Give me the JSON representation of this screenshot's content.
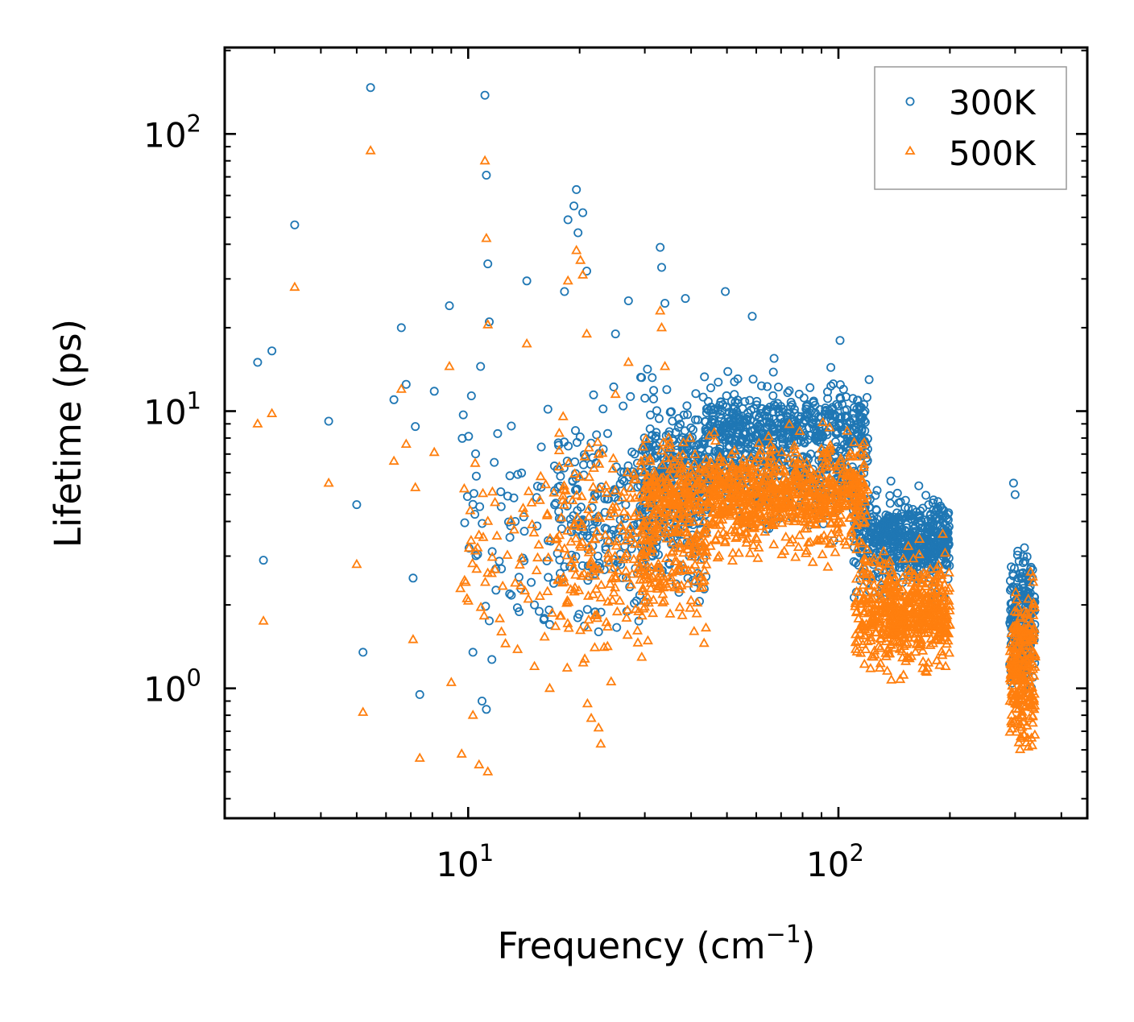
{
  "chart_data": {
    "type": "scatter",
    "title": "",
    "xlabel": "Frequency (cm",
    "xlabel_sup": "−1",
    "xlabel_close": ")",
    "ylabel": "Lifetime (ps)",
    "xscale": "log",
    "yscale": "log",
    "xlim": [
      2.2,
      470
    ],
    "ylim": [
      0.34,
      205
    ],
    "x_ticks": [
      {
        "value": 10,
        "base": "10",
        "exp": "1"
      },
      {
        "value": 100,
        "base": "10",
        "exp": "2"
      }
    ],
    "y_ticks": [
      {
        "value": 1,
        "base": "10",
        "exp": "0"
      },
      {
        "value": 10,
        "base": "10",
        "exp": "1"
      },
      {
        "value": 100,
        "base": "10",
        "exp": "2"
      }
    ],
    "legend": {
      "position": "top-right"
    },
    "series": [
      {
        "name": "300K",
        "marker": "circle",
        "color": "#1f77b4",
        "points": [
          {
            "x": 2.7,
            "y": 15.0
          },
          {
            "x": 2.8,
            "y": 2.9
          },
          {
            "x": 2.95,
            "y": 16.5
          },
          {
            "x": 3.4,
            "y": 47.0
          },
          {
            "x": 4.2,
            "y": 9.2
          },
          {
            "x": 5.0,
            "y": 4.6
          },
          {
            "x": 5.2,
            "y": 1.35
          },
          {
            "x": 5.45,
            "y": 147
          },
          {
            "x": 6.3,
            "y": 11.0
          },
          {
            "x": 6.6,
            "y": 20.0
          },
          {
            "x": 6.8,
            "y": 12.5
          },
          {
            "x": 7.1,
            "y": 2.5
          },
          {
            "x": 7.2,
            "y": 8.8
          },
          {
            "x": 7.4,
            "y": 0.95
          },
          {
            "x": 8.1,
            "y": 11.8
          },
          {
            "x": 8.9,
            "y": 24.0
          },
          {
            "x": 9.7,
            "y": 9.7
          },
          {
            "x": 10.3,
            "y": 1.35
          },
          {
            "x": 10.8,
            "y": 14.5
          },
          {
            "x": 11.1,
            "y": 138
          },
          {
            "x": 11.2,
            "y": 71.0
          },
          {
            "x": 11.3,
            "y": 34.0
          },
          {
            "x": 11.4,
            "y": 21.0
          },
          {
            "x": 11.2,
            "y": 0.84
          },
          {
            "x": 10.9,
            "y": 0.9
          },
          {
            "x": 12.3,
            "y": 2.7
          },
          {
            "x": 13.4,
            "y": 4.0
          },
          {
            "x": 14.4,
            "y": 29.5
          },
          {
            "x": 15.1,
            "y": 2.0
          },
          {
            "x": 16.6,
            "y": 1.7
          },
          {
            "x": 18.2,
            "y": 27.0
          },
          {
            "x": 18.6,
            "y": 49.0
          },
          {
            "x": 19.3,
            "y": 55.0
          },
          {
            "x": 19.6,
            "y": 63.0
          },
          {
            "x": 19.8,
            "y": 44.0
          },
          {
            "x": 20.4,
            "y": 52.0
          },
          {
            "x": 20.9,
            "y": 32.0
          },
          {
            "x": 22.5,
            "y": 1.6
          },
          {
            "x": 25.0,
            "y": 19.0
          },
          {
            "x": 27.1,
            "y": 25.0
          },
          {
            "x": 33.0,
            "y": 39.0
          },
          {
            "x": 33.3,
            "y": 33.0
          },
          {
            "x": 34.0,
            "y": 24.5
          },
          {
            "x": 38.6,
            "y": 25.5
          },
          {
            "x": 49.5,
            "y": 27.0
          },
          {
            "x": 58.5,
            "y": 22.0
          },
          {
            "x": 67.0,
            "y": 15.5
          },
          {
            "x": 101,
            "y": 18.0
          },
          {
            "x": 121,
            "y": 13.0
          },
          {
            "x": 297,
            "y": 5.5
          },
          {
            "x": 300,
            "y": 5.0
          }
        ],
        "clusters": [
          {
            "x": [
              9.5,
              17.0
            ],
            "y": [
              0.9,
              14.0
            ],
            "n": 60
          },
          {
            "x": [
              17.0,
              30.0
            ],
            "y": [
              1.2,
              16.0
            ],
            "n": 190
          },
          {
            "x": [
              29.0,
              44.0
            ],
            "y": [
              1.5,
              17.0
            ],
            "n": 260
          },
          {
            "x": [
              30.0,
              44.0
            ],
            "y": [
              4.0,
              11.0
            ],
            "n": 110
          },
          {
            "x": [
              44.0,
              120.0
            ],
            "y": [
              3.2,
              15.5
            ],
            "n": 520
          },
          {
            "x": [
              44.0,
              118.0
            ],
            "y": [
              6.5,
              12.5
            ],
            "n": 260
          },
          {
            "x": [
              110.0,
              200.0
            ],
            "y": [
              1.9,
              5.9
            ],
            "n": 380
          },
          {
            "x": [
              120.0,
              198.0
            ],
            "y": [
              2.5,
              4.8
            ],
            "n": 200
          },
          {
            "x": [
              290.0,
              340.0
            ],
            "y": [
              0.8,
              3.9
            ],
            "n": 220
          }
        ]
      },
      {
        "name": "500K",
        "marker": "triangle",
        "color": "#ff7f0e",
        "points": [
          {
            "x": 2.7,
            "y": 9.0
          },
          {
            "x": 2.8,
            "y": 1.75
          },
          {
            "x": 2.95,
            "y": 9.8
          },
          {
            "x": 3.4,
            "y": 28.0
          },
          {
            "x": 4.2,
            "y": 5.5
          },
          {
            "x": 5.0,
            "y": 2.8
          },
          {
            "x": 5.2,
            "y": 0.82
          },
          {
            "x": 5.45,
            "y": 87
          },
          {
            "x": 6.3,
            "y": 6.6
          },
          {
            "x": 6.6,
            "y": 12.0
          },
          {
            "x": 6.8,
            "y": 7.6
          },
          {
            "x": 7.1,
            "y": 1.5
          },
          {
            "x": 7.2,
            "y": 5.3
          },
          {
            "x": 7.4,
            "y": 0.56
          },
          {
            "x": 8.1,
            "y": 7.1
          },
          {
            "x": 8.9,
            "y": 14.5
          },
          {
            "x": 9.0,
            "y": 1.05
          },
          {
            "x": 9.6,
            "y": 0.58
          },
          {
            "x": 10.3,
            "y": 0.8
          },
          {
            "x": 10.7,
            "y": 0.53
          },
          {
            "x": 11.1,
            "y": 80.0
          },
          {
            "x": 11.2,
            "y": 42.0
          },
          {
            "x": 11.3,
            "y": 20.5
          },
          {
            "x": 11.3,
            "y": 0.5
          },
          {
            "x": 12.3,
            "y": 1.6
          },
          {
            "x": 13.4,
            "y": 2.4
          },
          {
            "x": 14.4,
            "y": 17.5
          },
          {
            "x": 15.1,
            "y": 1.2
          },
          {
            "x": 16.6,
            "y": 1.0
          },
          {
            "x": 18.6,
            "y": 29.5
          },
          {
            "x": 19.6,
            "y": 38.0
          },
          {
            "x": 20.1,
            "y": 35.0
          },
          {
            "x": 20.4,
            "y": 31.0
          },
          {
            "x": 20.9,
            "y": 19.0
          },
          {
            "x": 21.0,
            "y": 0.88
          },
          {
            "x": 21.5,
            "y": 0.78
          },
          {
            "x": 22.5,
            "y": 0.72
          },
          {
            "x": 22.8,
            "y": 0.63
          },
          {
            "x": 25.0,
            "y": 11.5
          },
          {
            "x": 27.1,
            "y": 15.0
          },
          {
            "x": 33.0,
            "y": 23.0
          },
          {
            "x": 33.3,
            "y": 20.0
          },
          {
            "x": 34.0,
            "y": 14.5
          },
          {
            "x": 123,
            "y": 1.3
          }
        ],
        "clusters": [
          {
            "x": [
              9.5,
              17.0
            ],
            "y": [
              1.0,
              9.0
            ],
            "n": 60
          },
          {
            "x": [
              17.0,
              30.0
            ],
            "y": [
              0.9,
              11.0
            ],
            "n": 190
          },
          {
            "x": [
              29.0,
              44.0
            ],
            "y": [
              1.05,
              11.5
            ],
            "n": 260
          },
          {
            "x": [
              30.0,
              44.0
            ],
            "y": [
              3.5,
              7.5
            ],
            "n": 120
          },
          {
            "x": [
              44.0,
              120.0
            ],
            "y": [
              2.4,
              10.0
            ],
            "n": 520
          },
          {
            "x": [
              44.0,
              118.0
            ],
            "y": [
              3.5,
              7.0
            ],
            "n": 260
          },
          {
            "x": [
              110.0,
              200.0
            ],
            "y": [
              0.95,
              4.0
            ],
            "n": 380
          },
          {
            "x": [
              120.0,
              198.0
            ],
            "y": [
              1.3,
              2.6
            ],
            "n": 200
          },
          {
            "x": [
              290.0,
              340.0
            ],
            "y": [
              0.47,
              3.0
            ],
            "n": 260
          }
        ]
      }
    ]
  }
}
